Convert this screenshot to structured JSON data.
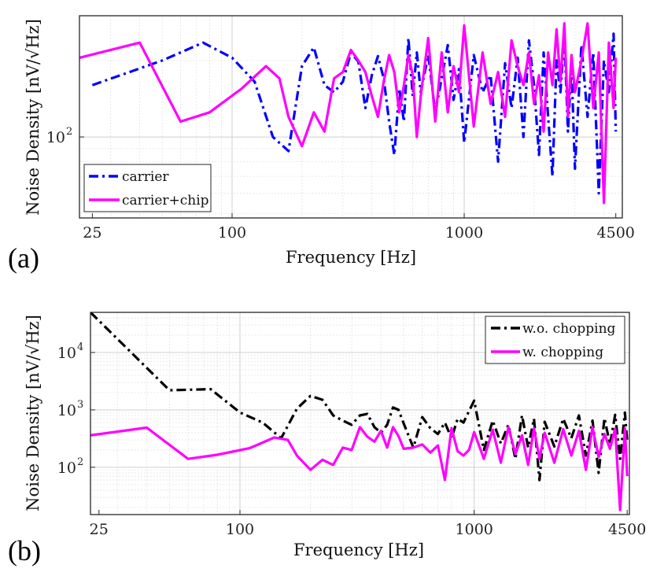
{
  "chart_data": [
    {
      "panel_label": "(a)",
      "type": "line",
      "xlabel": "Frequency [Hz]",
      "ylabel": "Noise Density [nV/√Hz]",
      "xscale": "log",
      "yscale": "log",
      "xlim": [
        22,
        4800
      ],
      "ylim": [
        48,
        300
      ],
      "xticks": [
        25,
        100,
        1000,
        4500
      ],
      "xtick_labels": [
        "25",
        "100",
        "1000",
        "4500"
      ],
      "yticks": [
        100
      ],
      "ytick_labels": [
        "10",
        "2"
      ],
      "grid": true,
      "legend": "bottom-left",
      "series": [
        {
          "name": "carrier",
          "color": "#0000FF",
          "dash": "dashdot",
          "x": [
            25,
            50,
            75,
            100,
            125,
            150,
            175,
            200,
            225,
            250,
            275,
            300,
            325,
            350,
            375,
            400,
            425,
            450,
            475,
            500,
            525,
            550,
            575,
            600,
            625,
            650,
            700,
            750,
            800,
            850,
            900,
            950,
            1000,
            1100,
            1200,
            1300,
            1400,
            1500,
            1600,
            1700,
            1800,
            1900,
            2000,
            2100,
            2200,
            2300,
            2400,
            2500,
            2600,
            2700,
            2800,
            2900,
            3000,
            3200,
            3400,
            3600,
            3800,
            4000,
            4200,
            4400,
            4500
          ],
          "y": [
            160,
            200,
            235,
            205,
            165,
            100,
            88,
            190,
            225,
            160,
            150,
            165,
            215,
            198,
            130,
            175,
            208,
            170,
            115,
            85,
            155,
            115,
            245,
            145,
            215,
            150,
            210,
            125,
            170,
            230,
            140,
            185,
            95,
            210,
            150,
            175,
            80,
            195,
            130,
            205,
            100,
            240,
            160,
            85,
            215,
            120,
            70,
            200,
            150,
            250,
            105,
            190,
            75,
            230,
            120,
            215,
            60,
            200,
            150,
            255,
            105
          ]
        },
        {
          "name": "carrier+chip",
          "color": "#FF00FF",
          "dash": "solid",
          "x": [
            22,
            40,
            60,
            80,
            110,
            140,
            160,
            175,
            200,
            225,
            250,
            275,
            300,
            325,
            350,
            375,
            400,
            425,
            450,
            475,
            500,
            525,
            550,
            575,
            600,
            625,
            650,
            700,
            750,
            800,
            850,
            900,
            950,
            1000,
            1100,
            1200,
            1300,
            1400,
            1500,
            1600,
            1700,
            1800,
            1900,
            2000,
            2100,
            2200,
            2300,
            2400,
            2500,
            2600,
            2700,
            2800,
            2900,
            3000,
            3200,
            3400,
            3600,
            3800,
            4000,
            4200,
            4400,
            4500
          ],
          "y": [
            205,
            235,
            115,
            125,
            155,
            190,
            170,
            120,
            92,
            125,
            105,
            170,
            180,
            220,
            200,
            180,
            145,
            120,
            165,
            210,
            180,
            125,
            160,
            210,
            175,
            100,
            145,
            245,
            115,
            215,
            125,
            190,
            150,
            275,
            110,
            215,
            135,
            180,
            120,
            240,
            190,
            160,
            215,
            135,
            175,
            105,
            215,
            160,
            265,
            165,
            280,
            120,
            210,
            150,
            200,
            280,
            130,
            215,
            55,
            235,
            130,
            205
          ]
        }
      ]
    },
    {
      "panel_label": "(b)",
      "type": "line",
      "xlabel": "Frequency [Hz]",
      "ylabel": "Noise Density [nV/√Hz]",
      "xscale": "log",
      "yscale": "log",
      "xlim": [
        23,
        4600
      ],
      "ylim": [
        15,
        50000
      ],
      "xticks": [
        25,
        100,
        1000,
        4500
      ],
      "xtick_labels": [
        "25",
        "100",
        "1000",
        "4500"
      ],
      "yticks": [
        100,
        1000,
        10000
      ],
      "ytick_labels": [
        "10",
        "2",
        "10",
        "3",
        "10",
        "4"
      ],
      "grid": true,
      "legend": "top-right",
      "series": [
        {
          "name": "w.o. chopping",
          "color": "#000000",
          "dash": "dashdot",
          "x": [
            23,
            50,
            75,
            100,
            125,
            150,
            175,
            200,
            225,
            250,
            275,
            300,
            325,
            350,
            375,
            400,
            425,
            450,
            475,
            500,
            550,
            600,
            650,
            700,
            750,
            800,
            850,
            900,
            950,
            1000,
            1100,
            1200,
            1300,
            1400,
            1500,
            1600,
            1700,
            1800,
            1900,
            2000,
            2200,
            2400,
            2600,
            2800,
            3000,
            3200,
            3400,
            3600,
            3800,
            4000,
            4200,
            4400,
            4500
          ],
          "y": [
            50000,
            2200,
            2300,
            900,
            600,
            320,
            1050,
            1750,
            1500,
            800,
            650,
            550,
            800,
            850,
            500,
            400,
            550,
            1100,
            1000,
            580,
            220,
            750,
            480,
            380,
            600,
            320,
            700,
            600,
            950,
            1450,
            200,
            650,
            260,
            550,
            140,
            800,
            220,
            700,
            60,
            620,
            230,
            700,
            320,
            800,
            160,
            650,
            80,
            720,
            250,
            820,
            140,
            900,
            280
          ]
        },
        {
          "name": "w. chopping",
          "color": "#FF00FF",
          "dash": "solid",
          "x": [
            23,
            40,
            60,
            80,
            110,
            140,
            160,
            175,
            200,
            225,
            250,
            275,
            300,
            325,
            350,
            375,
            400,
            425,
            450,
            475,
            500,
            550,
            600,
            650,
            700,
            750,
            800,
            850,
            900,
            950,
            1000,
            1100,
            1200,
            1300,
            1400,
            1500,
            1600,
            1700,
            1800,
            1900,
            2000,
            2200,
            2400,
            2600,
            2800,
            3000,
            3200,
            3400,
            3600,
            3800,
            4000,
            4200,
            4400,
            4500
          ],
          "y": [
            360,
            490,
            140,
            165,
            215,
            330,
            300,
            160,
            90,
            135,
            110,
            220,
            200,
            500,
            340,
            280,
            430,
            220,
            500,
            350,
            210,
            220,
            250,
            180,
            240,
            60,
            480,
            190,
            160,
            200,
            410,
            140,
            450,
            120,
            500,
            170,
            360,
            110,
            480,
            140,
            400,
            120,
            460,
            160,
            430,
            90,
            500,
            150,
            380,
            210,
            470,
            18,
            480,
            70
          ]
        }
      ]
    }
  ]
}
